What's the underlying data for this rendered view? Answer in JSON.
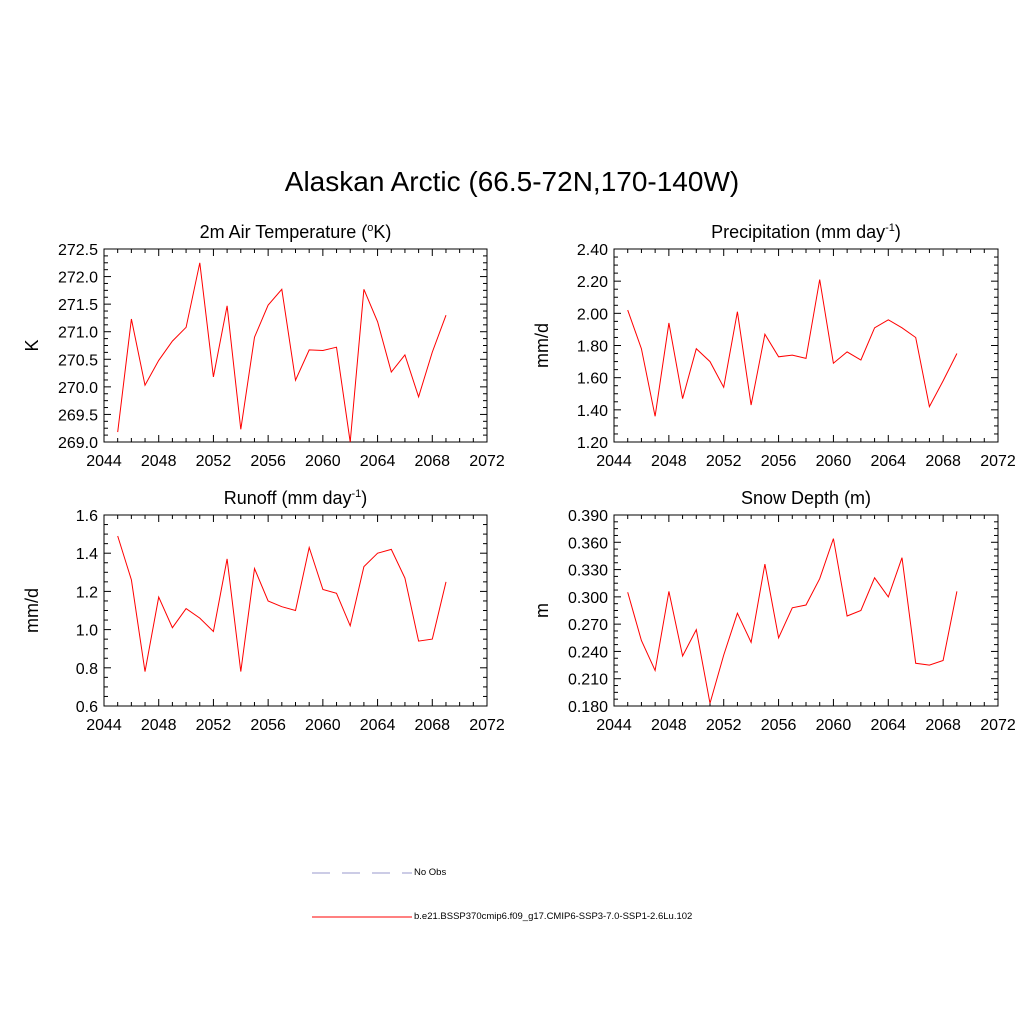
{
  "title": "Alaskan Arctic (66.5-72N,170-140W)",
  "colors": {
    "model_line": "#ff0000",
    "obs_line": "#9999cc",
    "axis": "#000000"
  },
  "legend": {
    "obs_label": "No Obs",
    "model_label": "b.e21.BSSP370cmip6.f09_g17.CMIP6-SSP3-7.0-SSP1-2.6Lu.102"
  },
  "chart_data": [
    {
      "type": "line",
      "title": "2m Air Temperature (",
      "title_parts": [
        "2m Air Temperature (",
        "o",
        "K)"
      ],
      "title_super": "o",
      "ylabel": "K",
      "xlim": [
        2044,
        2072
      ],
      "ylim": [
        269.0,
        272.5
      ],
      "x_ticks": [
        "2044",
        "2048",
        "2052",
        "2056",
        "2060",
        "2064",
        "2068",
        "2072"
      ],
      "y_ticks": [
        "269.0",
        "269.5",
        "270.0",
        "270.5",
        "271.0",
        "271.5",
        "272.0",
        "272.5"
      ],
      "x": [
        2045,
        2046,
        2047,
        2048,
        2049,
        2050,
        2051,
        2052,
        2053,
        2054,
        2055,
        2056,
        2057,
        2058,
        2059,
        2060,
        2061,
        2062,
        2063,
        2064,
        2065,
        2066,
        2067,
        2068,
        2069
      ],
      "values": [
        269.18,
        271.23,
        270.03,
        270.48,
        270.83,
        271.08,
        272.25,
        270.18,
        271.47,
        269.23,
        270.9,
        271.48,
        271.77,
        270.12,
        270.67,
        270.66,
        270.72,
        269.0,
        271.77,
        271.18,
        270.27,
        270.58,
        269.82,
        270.63,
        271.3
      ]
    },
    {
      "type": "line",
      "title_parts": [
        "Precipitation (mm day",
        "-1",
        ")"
      ],
      "ylabel": "mm/d",
      "xlim": [
        2044,
        2072
      ],
      "ylim": [
        1.2,
        2.4
      ],
      "x_ticks": [
        "2044",
        "2048",
        "2052",
        "2056",
        "2060",
        "2064",
        "2068",
        "2072"
      ],
      "y_ticks": [
        "1.20",
        "1.40",
        "1.60",
        "1.80",
        "2.00",
        "2.20",
        "2.40"
      ],
      "x": [
        2045,
        2046,
        2047,
        2048,
        2049,
        2050,
        2051,
        2052,
        2053,
        2054,
        2055,
        2056,
        2057,
        2058,
        2059,
        2060,
        2061,
        2062,
        2063,
        2064,
        2065,
        2066,
        2067,
        2068,
        2069
      ],
      "values": [
        2.02,
        1.78,
        1.36,
        1.94,
        1.47,
        1.78,
        1.7,
        1.54,
        2.01,
        1.43,
        1.87,
        1.73,
        1.74,
        1.72,
        2.21,
        1.69,
        1.76,
        1.71,
        1.91,
        1.96,
        1.91,
        1.85,
        1.42,
        1.58,
        1.75
      ]
    },
    {
      "type": "line",
      "title_parts": [
        "Runoff (mm day",
        "-1",
        ")"
      ],
      "ylabel": "mm/d",
      "xlim": [
        2044,
        2072
      ],
      "ylim": [
        0.6,
        1.6
      ],
      "x_ticks": [
        "2044",
        "2048",
        "2052",
        "2056",
        "2060",
        "2064",
        "2068",
        "2072"
      ],
      "y_ticks": [
        "0.6",
        "0.8",
        "1.0",
        "1.2",
        "1.4",
        "1.6"
      ],
      "x": [
        2045,
        2046,
        2047,
        2048,
        2049,
        2050,
        2051,
        2052,
        2053,
        2054,
        2055,
        2056,
        2057,
        2058,
        2059,
        2060,
        2061,
        2062,
        2063,
        2064,
        2065,
        2066,
        2067,
        2068,
        2069
      ],
      "values": [
        1.49,
        1.26,
        0.78,
        1.17,
        1.01,
        1.11,
        1.06,
        0.99,
        1.37,
        0.78,
        1.32,
        1.15,
        1.12,
        1.1,
        1.43,
        1.21,
        1.19,
        1.02,
        1.33,
        1.4,
        1.42,
        1.27,
        0.94,
        0.95,
        1.25
      ]
    },
    {
      "type": "line",
      "title_parts": [
        "Snow Depth (m)"
      ],
      "ylabel": "m",
      "xlim": [
        2044,
        2072
      ],
      "ylim": [
        0.18,
        0.39
      ],
      "x_ticks": [
        "2044",
        "2048",
        "2052",
        "2056",
        "2060",
        "2064",
        "2068",
        "2072"
      ],
      "y_ticks": [
        "0.180",
        "0.210",
        "0.240",
        "0.270",
        "0.300",
        "0.330",
        "0.360",
        "0.390"
      ],
      "x": [
        2045,
        2046,
        2047,
        2048,
        2049,
        2050,
        2051,
        2052,
        2053,
        2054,
        2055,
        2056,
        2057,
        2058,
        2059,
        2060,
        2061,
        2062,
        2063,
        2064,
        2065,
        2066,
        2067,
        2068,
        2069
      ],
      "values": [
        0.305,
        0.252,
        0.219,
        0.306,
        0.235,
        0.264,
        0.183,
        0.236,
        0.282,
        0.25,
        0.336,
        0.255,
        0.288,
        0.291,
        0.32,
        0.364,
        0.279,
        0.285,
        0.321,
        0.3,
        0.343,
        0.227,
        0.225,
        0.23,
        0.306
      ]
    }
  ]
}
